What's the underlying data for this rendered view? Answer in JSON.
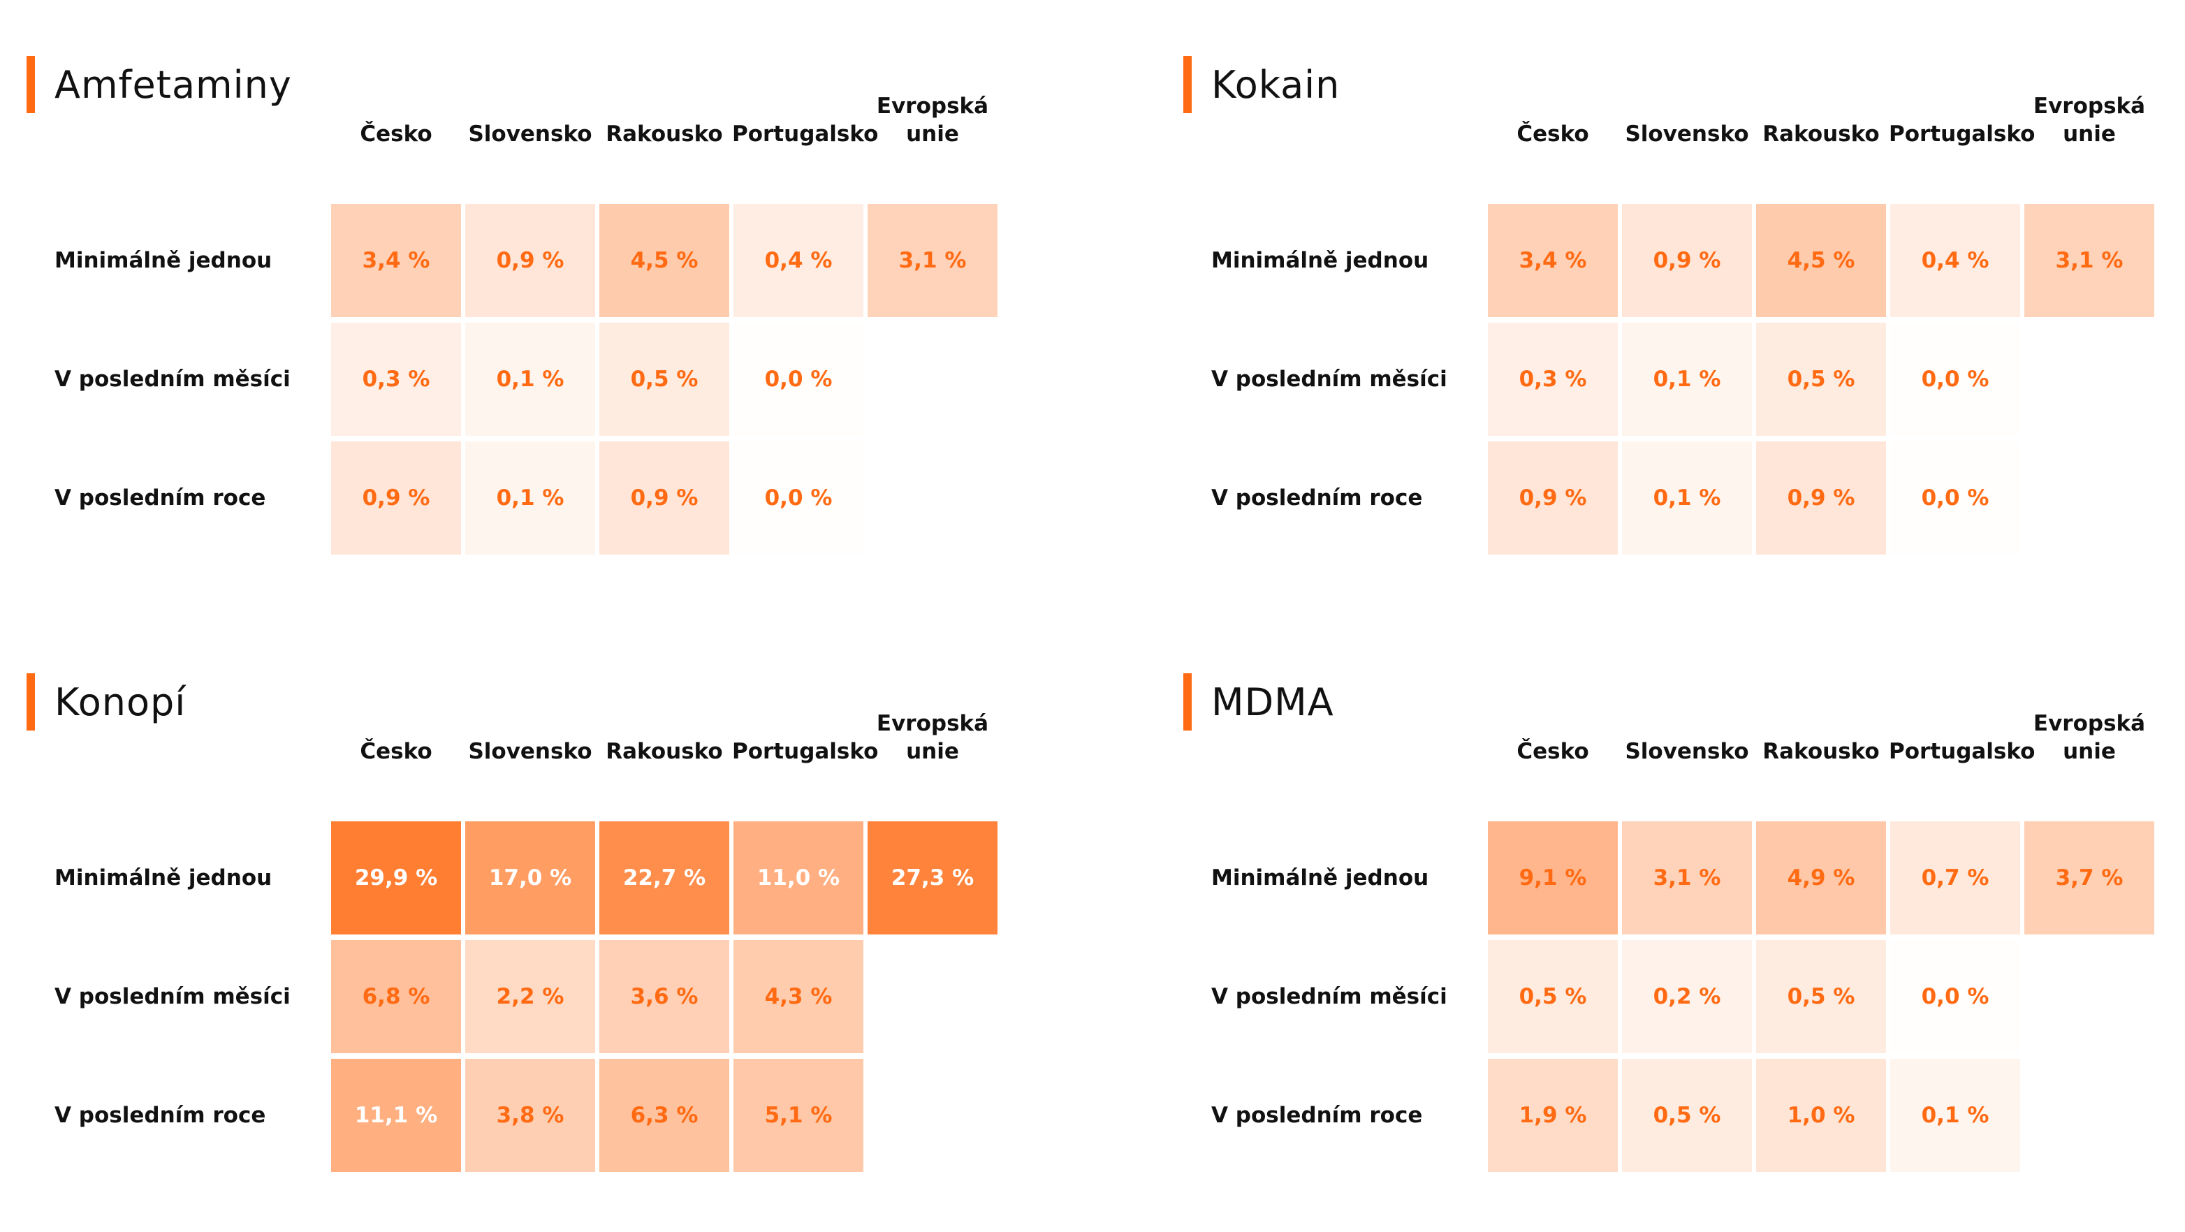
{
  "colors": {
    "accent": "#FF6A13",
    "cell_text": "#FF6A13",
    "cell_text_on_dark": "#FFFFFF"
  },
  "chart_data": [
    {
      "type": "heatmap",
      "title": "Amfetaminy",
      "columns": [
        "Česko",
        "Slovensko",
        "Rakousko",
        "Portugalsko",
        "Evropská\nunie"
      ],
      "rows": [
        "Minimálně jednou",
        "V posledním měsíci",
        "V posledním roce"
      ],
      "values": [
        [
          3.4,
          0.9,
          4.5,
          0.4,
          3.1
        ],
        [
          0.3,
          0.1,
          0.5,
          0.0,
          null
        ],
        [
          0.9,
          0.1,
          0.9,
          0.0,
          null
        ]
      ],
      "labels": [
        [
          "3,4 %",
          "0,9 %",
          "4,5 %",
          "0,4 %",
          "3,1 %"
        ],
        [
          "0,3 %",
          "0,1 %",
          "0,5 %",
          "0,0 %",
          ""
        ],
        [
          "0,9 %",
          "0,1 %",
          "0,9 %",
          "0,0 %",
          ""
        ]
      ],
      "unit": "%"
    },
    {
      "type": "heatmap",
      "title": "Kokain",
      "columns": [
        "Česko",
        "Slovensko",
        "Rakousko",
        "Portugalsko",
        "Evropská\nunie"
      ],
      "rows": [
        "Minimálně jednou",
        "V posledním měsíci",
        "V posledním roce"
      ],
      "values": [
        [
          3.4,
          0.9,
          4.5,
          0.4,
          3.1
        ],
        [
          0.3,
          0.1,
          0.5,
          0.0,
          null
        ],
        [
          0.9,
          0.1,
          0.9,
          0.0,
          null
        ]
      ],
      "labels": [
        [
          "3,4 %",
          "0,9 %",
          "4,5 %",
          "0,4 %",
          "3,1 %"
        ],
        [
          "0,3 %",
          "0,1 %",
          "0,5 %",
          "0,0 %",
          ""
        ],
        [
          "0,9 %",
          "0,1 %",
          "0,9 %",
          "0,0 %",
          ""
        ]
      ],
      "unit": "%"
    },
    {
      "type": "heatmap",
      "title": "Konopí",
      "columns": [
        "Česko",
        "Slovensko",
        "Rakousko",
        "Portugalsko",
        "Evropská\nunie"
      ],
      "rows": [
        "Minimálně jednou",
        "V posledním měsíci",
        "V posledním roce"
      ],
      "values": [
        [
          29.9,
          17.0,
          22.7,
          11.0,
          27.3
        ],
        [
          6.8,
          2.2,
          3.6,
          4.3,
          null
        ],
        [
          11.1,
          3.8,
          6.3,
          5.1,
          null
        ]
      ],
      "labels": [
        [
          "29,9 %",
          "17,0 %",
          "22,7 %",
          "11,0 %",
          "27,3 %"
        ],
        [
          "6,8 %",
          "2,2 %",
          "3,6 %",
          "4,3 %",
          ""
        ],
        [
          "11,1 %",
          "3,8 %",
          "6,3 %",
          "5,1 %",
          ""
        ]
      ],
      "unit": "%"
    },
    {
      "type": "heatmap",
      "title": "MDMA",
      "columns": [
        "Česko",
        "Slovensko",
        "Rakousko",
        "Portugalsko",
        "Evropská\nunie"
      ],
      "rows": [
        "Minimálně jednou",
        "V posledním měsíci",
        "V posledním roce"
      ],
      "values": [
        [
          9.1,
          3.1,
          4.9,
          0.7,
          3.7
        ],
        [
          0.5,
          0.2,
          0.5,
          0.0,
          null
        ],
        [
          1.9,
          0.5,
          1.0,
          0.1,
          null
        ]
      ],
      "labels": [
        [
          "9,1 %",
          "3,1 %",
          "4,9 %",
          "0,7 %",
          "3,7 %"
        ],
        [
          "0,5 %",
          "0,2 %",
          "0,5 %",
          "0,0 %",
          ""
        ],
        [
          "1,9 %",
          "0,5 %",
          "1,0 %",
          "0,1 %",
          ""
        ]
      ],
      "unit": "%"
    }
  ]
}
